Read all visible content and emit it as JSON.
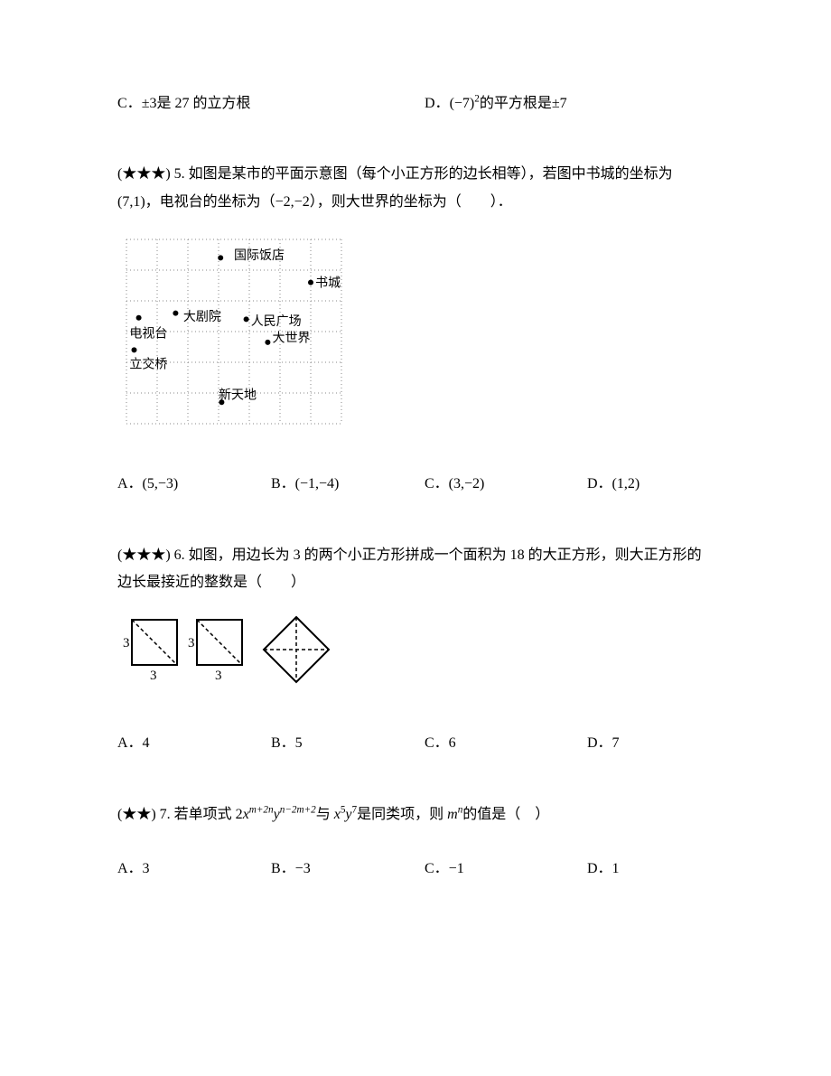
{
  "q4": {
    "optC_prefix": "C．",
    "optC_text": "±3是 27 的立方根",
    "optD_prefix": "D．",
    "optD_t1": "(−7)",
    "optD_sup": "2",
    "optD_t2": "的平方根是±7"
  },
  "q5": {
    "stars": "(★★★) 5. ",
    "text": "如图是某市的平面示意图（每个小正方形的边长相等），若图中书城的坐标为 (7,1)，电视台的坐标为（−2,−2），则大世界的坐标为（　　）．",
    "optA": "A．(5,−3)",
    "optB": "B．(−1,−4)",
    "optC": "C．(3,−2)",
    "optD": "D．(1,2)",
    "map": {
      "cell": 34,
      "cols": 7,
      "rows": 6,
      "grid_color": "#888888",
      "text_color": "#000000",
      "points": [
        {
          "label": "国际饭店",
          "gx": 3.3,
          "gy": 0.6,
          "lx": 3.5,
          "ly": 0.55,
          "anchor": "start",
          "dot_dx": -8
        },
        {
          "label": "书城",
          "gx": 6.0,
          "gy": 1.4,
          "lx": 6.15,
          "ly": 1.45,
          "anchor": "start",
          "dot_dx": 0
        },
        {
          "label": "大剧院",
          "gx": 1.6,
          "gy": 2.4,
          "lx": 1.85,
          "ly": 2.55,
          "anchor": "start",
          "dot_dx": 0
        },
        {
          "label": "人民广场",
          "gx": 3.9,
          "gy": 2.6,
          "lx": 4.05,
          "ly": 2.7,
          "anchor": "start",
          "dot_dx": 0
        },
        {
          "label": "电视台",
          "gx": 0.4,
          "gy": 2.55,
          "lx": 0.1,
          "ly": 3.1,
          "anchor": "start",
          "dot_dx": 0
        },
        {
          "label": "大世界",
          "gx": 4.6,
          "gy": 3.35,
          "lx": 4.75,
          "ly": 3.25,
          "anchor": "start",
          "dot_dx": 0
        },
        {
          "label": "立交桥",
          "gx": 0.25,
          "gy": 3.6,
          "lx": 0.1,
          "ly": 4.1,
          "anchor": "start",
          "dot_dx": 0
        },
        {
          "label": "新天地",
          "gx": 3.1,
          "gy": 5.3,
          "lx": 3.0,
          "ly": 5.1,
          "anchor": "start",
          "dot_dx": 0
        }
      ]
    }
  },
  "q6": {
    "stars": "(★★★) 6. ",
    "text": "如图，用边长为 3 的两个小正方形拼成一个面积为 18 的大正方形，则大正方形的边长最接近的整数是（　　）",
    "optA": "A．4",
    "optB": "B．5",
    "optC": "C．6",
    "optD": "D．7",
    "sq": {
      "side": 50,
      "label": "3",
      "stroke": "#000000",
      "dash": "4,3"
    }
  },
  "q7": {
    "stars": "(★★) 7. ",
    "t1": "若单项式 2",
    "x1": "x",
    "e1": "m+2n",
    "y1": "y",
    "e2": "n−2m+2",
    "t2": "与 ",
    "x2": "x",
    "e3": "5",
    "y2": "y",
    "e4": "7",
    "t3": "是同类项，则 ",
    "mn": "m",
    "e5": "n",
    "t4": "的值是（　）",
    "optA": "A．3",
    "optB": "B．−3",
    "optC": "C．−1",
    "optD": "D．1"
  }
}
